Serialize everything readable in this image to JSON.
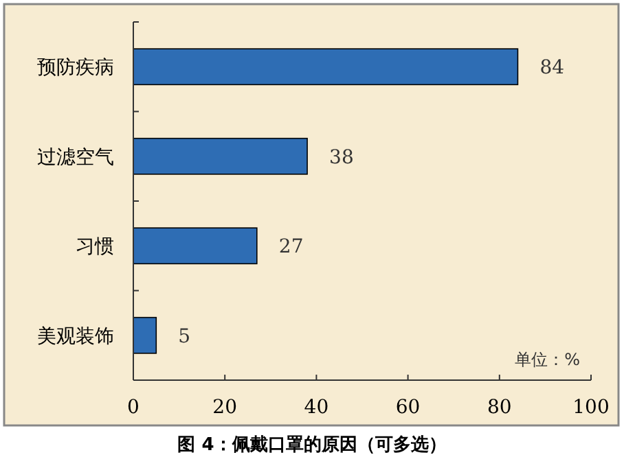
{
  "chart_data": {
    "type": "bar",
    "orientation": "horizontal",
    "title": "图 4：佩戴口罩的原因（可多选）",
    "categories": [
      "预防疾病",
      "过滤空气",
      "习惯",
      "美观装饰"
    ],
    "values": [
      84,
      38,
      27,
      5
    ],
    "color": "#2e6db4",
    "xlim": [
      0,
      100
    ],
    "xticks": [
      0,
      20,
      40,
      60,
      80,
      100
    ],
    "data_labels": true,
    "annotations": [
      "单位：%"
    ]
  }
}
